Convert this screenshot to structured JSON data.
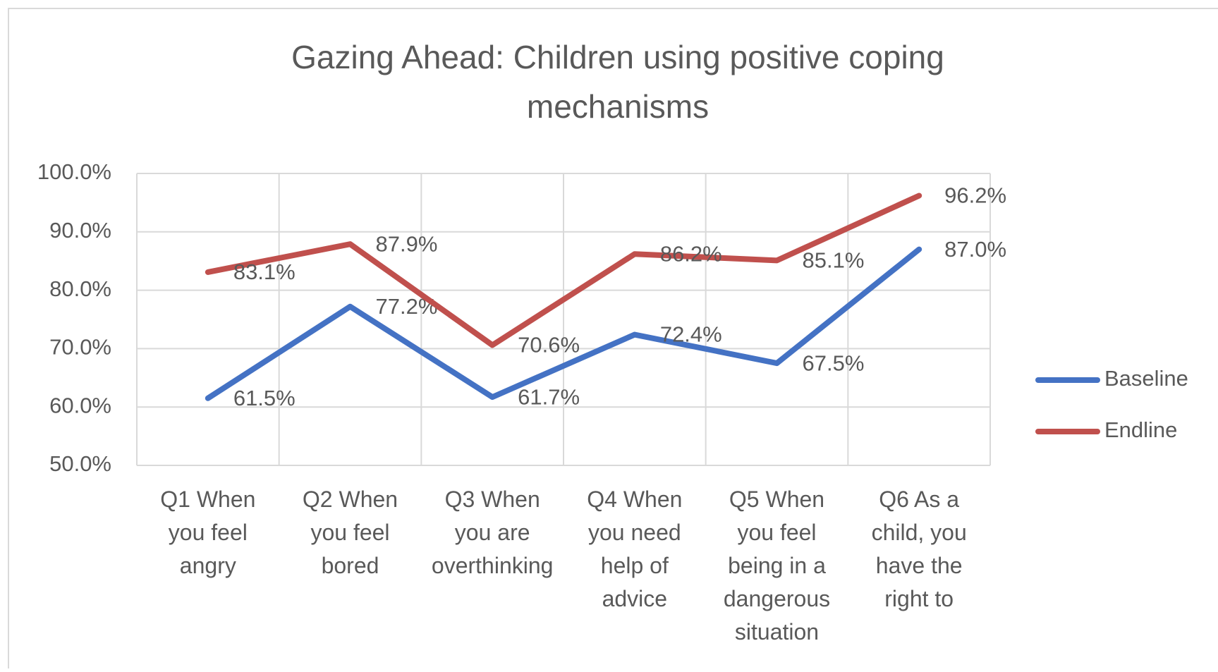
{
  "chart_data": {
    "type": "line",
    "title": "Gazing Ahead: Children using positive coping mechanisms",
    "categories": [
      "Q1 When you feel angry",
      "Q2 When you feel bored",
      "Q3 When you are overthinking",
      "Q4 When you need help of advice",
      "Q5 When you feel being in a dangerous situation",
      "Q6 As a child, you have the right to"
    ],
    "series": [
      {
        "name": "Baseline",
        "color": "#4472c4",
        "values": [
          61.5,
          77.2,
          61.7,
          72.4,
          67.5,
          87.0
        ],
        "value_labels": [
          "61.5%",
          "77.2%",
          "61.7%",
          "72.4%",
          "67.5%",
          "87.0%"
        ]
      },
      {
        "name": "Endline",
        "color": "#c0504d",
        "values": [
          83.1,
          87.9,
          70.6,
          86.2,
          85.1,
          96.2
        ],
        "value_labels": [
          "83.1%",
          "87.9%",
          "70.6%",
          "86.2%",
          "85.1%",
          "96.2%"
        ]
      }
    ],
    "ylim": [
      50,
      100
    ],
    "yticks": [
      {
        "value": 50,
        "label": "50.0%"
      },
      {
        "value": 60,
        "label": "60.0%"
      },
      {
        "value": 70,
        "label": "70.0%"
      },
      {
        "value": 80,
        "label": "80.0%"
      },
      {
        "value": 90,
        "label": "90.0%"
      },
      {
        "value": 100,
        "label": "100.0%"
      }
    ],
    "grid": true,
    "legend": "right"
  }
}
